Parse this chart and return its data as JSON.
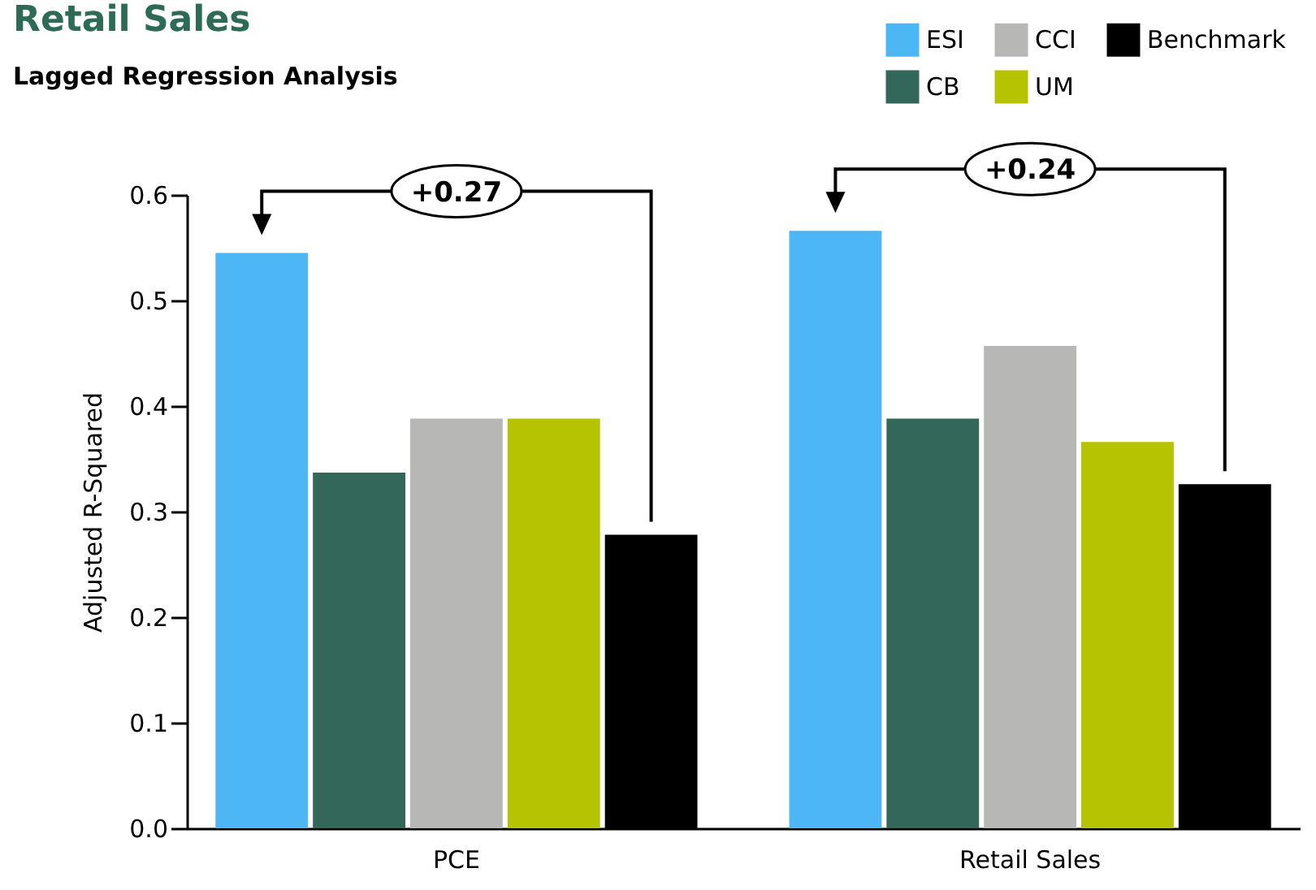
{
  "chart_data": {
    "type": "bar",
    "title": "Retail Sales",
    "subtitle": "Lagged Regression Analysis",
    "ylabel": "Adjusted R-Squared",
    "categories": [
      "PCE",
      "Retail Sales"
    ],
    "series": [
      {
        "name": "ESI",
        "color": "#4db6f5",
        "values": [
          0.545,
          0.566
        ]
      },
      {
        "name": "CB",
        "color": "#33675a",
        "values": [
          0.337,
          0.388
        ]
      },
      {
        "name": "CCI",
        "color": "#b7b7b5",
        "values": [
          0.388,
          0.457
        ]
      },
      {
        "name": "UM",
        "color": "#b6c300",
        "values": [
          0.388,
          0.366
        ]
      },
      {
        "name": "Benchmark",
        "color": "#000000",
        "values": [
          0.278,
          0.326
        ]
      }
    ],
    "ylim": [
      0,
      0.6
    ],
    "yticks": [
      {
        "value": 0,
        "label": "0.0"
      },
      0.1,
      0.2,
      0.3,
      0.4,
      0.5,
      0.6
    ],
    "annotations": [
      "+0.27",
      "+0.24"
    ],
    "grid": false,
    "legend": "top right"
  }
}
